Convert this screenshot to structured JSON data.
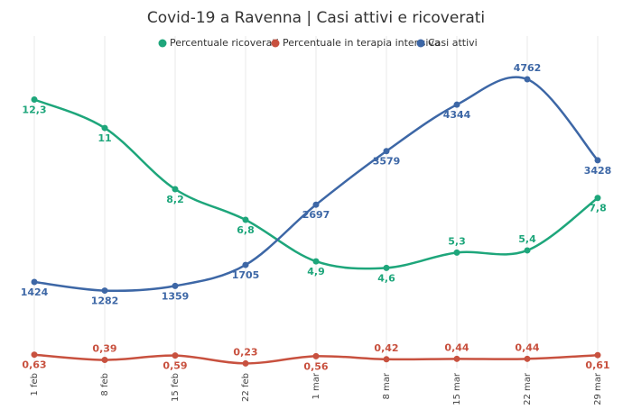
{
  "chart_data": {
    "type": "line",
    "title": "Covid-19 a Ravenna | Casi attivi e ricoverati",
    "categories": [
      "1 feb",
      "8 feb",
      "15 feb",
      "22 feb",
      "1 mar",
      "8 mar",
      "15 mar",
      "22 mar",
      "29 mar"
    ],
    "series": [
      {
        "name": "Percentuale ricoverati",
        "color": "#1ea67b",
        "values": [
          12.3,
          11,
          8.2,
          6.8,
          4.9,
          4.6,
          5.3,
          5.4,
          7.8
        ],
        "value_labels": [
          "12,3",
          "11",
          "8,2",
          "6,8",
          "4,9",
          "4,6",
          "5,3",
          "5,4",
          "7,8"
        ]
      },
      {
        "name": "Percentuale in terapia intensiva",
        "color": "#c8513f",
        "values": [
          0.63,
          0.39,
          0.59,
          0.23,
          0.56,
          0.42,
          0.44,
          0.44,
          0.61
        ],
        "value_labels": [
          "0,63",
          "0,39",
          "0,59",
          "0,23",
          "0,56",
          "0,42",
          "0,44",
          "0,44",
          "0,61"
        ]
      },
      {
        "name": "Casi attivi",
        "color": "#3d67a6",
        "axis": "y2",
        "values": [
          1424,
          1282,
          1359,
          1705,
          2697,
          3579,
          4344,
          4762,
          3428
        ]
      }
    ],
    "ylim": [
      0,
      15
    ],
    "y2lim": [
      0,
      5400
    ],
    "legend": "top"
  }
}
